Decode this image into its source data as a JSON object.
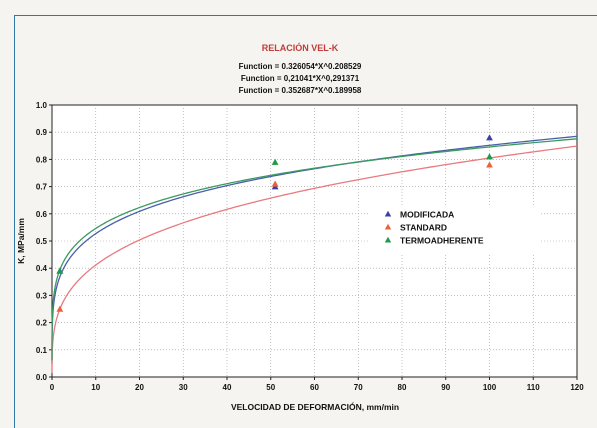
{
  "chart_data": {
    "type": "scatter",
    "title": "RELACIÓN VEL-K",
    "functions": [
      "Function = 0.326054*X^0.208529",
      "Function = 0,21041*X^0,291371",
      "Function = 0.352687*X^0.189958"
    ],
    "xlabel": "VELOCIDAD DE DEFORMACIÓN, mm/min",
    "ylabel": "K, MPa/mm",
    "xlim": [
      0,
      120
    ],
    "ylim": [
      0,
      1.0
    ],
    "xticks": [
      "0",
      "10",
      "20",
      "30",
      "40",
      "50",
      "60",
      "70",
      "80",
      "90",
      "100",
      "110",
      "120"
    ],
    "yticks": [
      "0.0",
      "0.1",
      "0.2",
      "0.3",
      "0.4",
      "0.5",
      "0.6",
      "0.7",
      "0.8",
      "0.9",
      "1.0"
    ],
    "grid": true,
    "legend_position": "center-right",
    "series": [
      {
        "name": "MODIFICADA",
        "color": "#3b3fa8",
        "points": [
          [
            1.8,
            0.39
          ],
          [
            51,
            0.7
          ],
          [
            100,
            0.88
          ]
        ],
        "fit": {
          "a": 0.326054,
          "b": 0.208529
        }
      },
      {
        "name": "STANDARD",
        "color": "#e8623a",
        "points": [
          [
            1.8,
            0.25
          ],
          [
            51,
            0.71
          ],
          [
            100,
            0.78
          ]
        ],
        "fit": {
          "a": 0.21041,
          "b": 0.291371
        }
      },
      {
        "name": "TERMOADHERENTE",
        "color": "#1f9a4a",
        "points": [
          [
            1.8,
            0.39
          ],
          [
            51,
            0.79
          ],
          [
            100,
            0.81
          ]
        ],
        "fit": {
          "a": 0.352687,
          "b": 0.189958
        }
      }
    ],
    "fit_line_colors": [
      "#4a5fa8",
      "#e87a7e",
      "#3a9a62"
    ]
  }
}
